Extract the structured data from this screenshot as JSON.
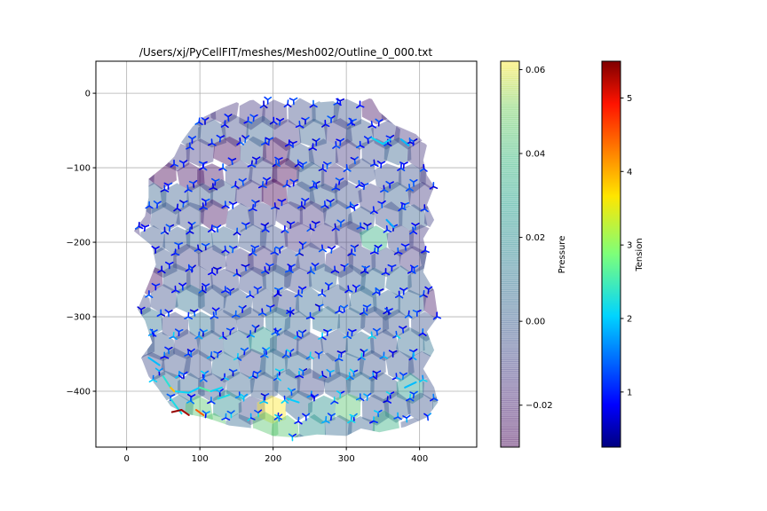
{
  "chart_data": {
    "type": "scatter",
    "title": "/Users/xj/PyCellFIT/meshes/Mesh002/Outline_0_000.txt",
    "xlabel": "",
    "ylabel": "",
    "xlim": [
      -42,
      478
    ],
    "ylim": [
      -475,
      43
    ],
    "x_ticks": [
      0,
      100,
      200,
      300,
      400
    ],
    "y_ticks": [
      0,
      -100,
      -200,
      -300,
      -400
    ],
    "grid": true,
    "description_cells": "Voronoi-like polygonal cells colored by pressure (viridis, alpha 0.4)",
    "description_edges": "Three-legged junction markers at cell vertices colored by tension (jet)",
    "outline": [
      [
        10,
        -185
      ],
      [
        25,
        -165
      ],
      [
        30,
        -140
      ],
      [
        30,
        -115
      ],
      [
        55,
        -95
      ],
      [
        65,
        -85
      ],
      [
        75,
        -65
      ],
      [
        90,
        -45
      ],
      [
        105,
        -32
      ],
      [
        130,
        -20
      ],
      [
        150,
        -12
      ],
      [
        180,
        -8
      ],
      [
        205,
        -5
      ],
      [
        225,
        -2
      ],
      [
        245,
        0
      ],
      [
        265,
        -12
      ],
      [
        290,
        -10
      ],
      [
        315,
        -2
      ],
      [
        335,
        -8
      ],
      [
        345,
        -25
      ],
      [
        365,
        -42
      ],
      [
        395,
        -55
      ],
      [
        410,
        -70
      ],
      [
        405,
        -90
      ],
      [
        410,
        -110
      ],
      [
        420,
        -125
      ],
      [
        410,
        -150
      ],
      [
        420,
        -170
      ],
      [
        405,
        -195
      ],
      [
        410,
        -215
      ],
      [
        405,
        -240
      ],
      [
        420,
        -265
      ],
      [
        425,
        -300
      ],
      [
        410,
        -320
      ],
      [
        420,
        -345
      ],
      [
        405,
        -370
      ],
      [
        420,
        -395
      ],
      [
        425,
        -415
      ],
      [
        410,
        -435
      ],
      [
        380,
        -448
      ],
      [
        345,
        -455
      ],
      [
        320,
        -450
      ],
      [
        300,
        -460
      ],
      [
        260,
        -458
      ],
      [
        230,
        -462
      ],
      [
        200,
        -460
      ],
      [
        175,
        -450
      ],
      [
        140,
        -446
      ],
      [
        110,
        -436
      ],
      [
        80,
        -430
      ],
      [
        60,
        -420
      ],
      [
        42,
        -395
      ],
      [
        30,
        -380
      ],
      [
        20,
        -355
      ],
      [
        35,
        -335
      ],
      [
        25,
        -305
      ],
      [
        15,
        -290
      ],
      [
        30,
        -255
      ],
      [
        40,
        -230
      ],
      [
        35,
        -205
      ]
    ],
    "cells": {
      "count_cols": 13,
      "count_rows": 15,
      "x_start": 0,
      "y_start": -25,
      "dx": 26,
      "dy": -27
    },
    "special_cells": [
      {
        "x": 50,
        "y": -92,
        "p": -0.03
      },
      {
        "x": 100,
        "y": -100,
        "p": -0.025
      },
      {
        "x": 125,
        "y": -85,
        "p": -0.028
      },
      {
        "x": 200,
        "y": -90,
        "p": -0.028
      },
      {
        "x": 205,
        "y": -122,
        "p": -0.03
      },
      {
        "x": 120,
        "y": -155,
        "p": -0.025
      },
      {
        "x": 330,
        "y": -22,
        "p": -0.025
      },
      {
        "x": 30,
        "y": -255,
        "p": -0.027
      },
      {
        "x": 420,
        "y": -280,
        "p": -0.022
      },
      {
        "x": 215,
        "y": -432,
        "p": 0.062
      },
      {
        "x": 200,
        "y": -460,
        "p": 0.045
      },
      {
        "x": 285,
        "y": -428,
        "p": 0.05
      },
      {
        "x": 315,
        "y": -418,
        "p": 0.045
      },
      {
        "x": 80,
        "y": -445,
        "p": 0.042
      },
      {
        "x": 110,
        "y": -438,
        "p": 0.045
      },
      {
        "x": 40,
        "y": -410,
        "p": 0.03
      },
      {
        "x": 370,
        "y": -448,
        "p": 0.035
      },
      {
        "x": 350,
        "y": -195,
        "p": 0.035
      },
      {
        "x": 395,
        "y": -402,
        "p": 0.025
      },
      {
        "x": 140,
        "y": -430,
        "p": 0.02
      },
      {
        "x": 180,
        "y": -325,
        "p": 0.025
      },
      {
        "x": 255,
        "y": -440,
        "p": 0.022
      }
    ],
    "hot_edges": [
      {
        "x1": 65,
        "y1": -400,
        "x2": 85,
        "y2": -402,
        "t": 2.1
      },
      {
        "x1": 60,
        "y1": -410,
        "x2": 75,
        "y2": -430,
        "t": 2.2
      },
      {
        "x1": 85,
        "y1": -402,
        "x2": 100,
        "y2": -395,
        "t": 2.0
      },
      {
        "x1": 100,
        "y1": -395,
        "x2": 115,
        "y2": -400,
        "t": 2.6
      },
      {
        "x1": 50,
        "y1": -380,
        "x2": 60,
        "y2": -395,
        "t": 2.3
      },
      {
        "x1": 115,
        "y1": -400,
        "x2": 130,
        "y2": -395,
        "t": 2.1
      },
      {
        "x1": 125,
        "y1": -410,
        "x2": 140,
        "y2": -405,
        "t": 2.2
      },
      {
        "x1": 60,
        "y1": -395,
        "x2": 65,
        "y2": -400,
        "t": 3.9
      },
      {
        "x1": 62,
        "y1": -428,
        "x2": 75,
        "y2": -425,
        "t": 5.4
      },
      {
        "x1": 75,
        "y1": -425,
        "x2": 85,
        "y2": -432,
        "t": 5.3
      },
      {
        "x1": 95,
        "y1": -425,
        "x2": 105,
        "y2": -432,
        "t": 4.5
      },
      {
        "x1": 220,
        "y1": -410,
        "x2": 235,
        "y2": -415,
        "t": 2.0
      },
      {
        "x1": 335,
        "y1": -60,
        "x2": 350,
        "y2": -68,
        "t": 2.1
      },
      {
        "x1": 350,
        "y1": -68,
        "x2": 360,
        "y2": -62,
        "t": 2.0
      },
      {
        "x1": 375,
        "y1": -62,
        "x2": 385,
        "y2": -70,
        "t": 1.9
      },
      {
        "x1": 380,
        "y1": -395,
        "x2": 395,
        "y2": -388,
        "t": 1.9
      },
      {
        "x1": 355,
        "y1": -170,
        "x2": 365,
        "y2": -180,
        "t": 1.8
      },
      {
        "x1": 30,
        "y1": -355,
        "x2": 45,
        "y2": -365,
        "t": 1.9
      }
    ],
    "colorbars": [
      {
        "label": "Pressure",
        "colormap": "viridis",
        "alpha": 0.4,
        "range": [
          -0.03,
          0.062
        ],
        "ticks": [
          -0.02,
          0.0,
          0.02,
          0.04,
          0.06
        ],
        "tick_labels": [
          "−0.02",
          "0.00",
          "0.02",
          "0.04",
          "0.06"
        ]
      },
      {
        "label": "Tension",
        "colormap": "jet",
        "alpha": 1,
        "range": [
          0.25,
          5.5
        ],
        "ticks": [
          1,
          2,
          3,
          4,
          5
        ],
        "tick_labels": [
          "1",
          "2",
          "3",
          "4",
          "5"
        ]
      }
    ]
  },
  "colors": {
    "grid": "#b0b0b0",
    "axes": "#000000",
    "base_edge": "#0000cc"
  }
}
